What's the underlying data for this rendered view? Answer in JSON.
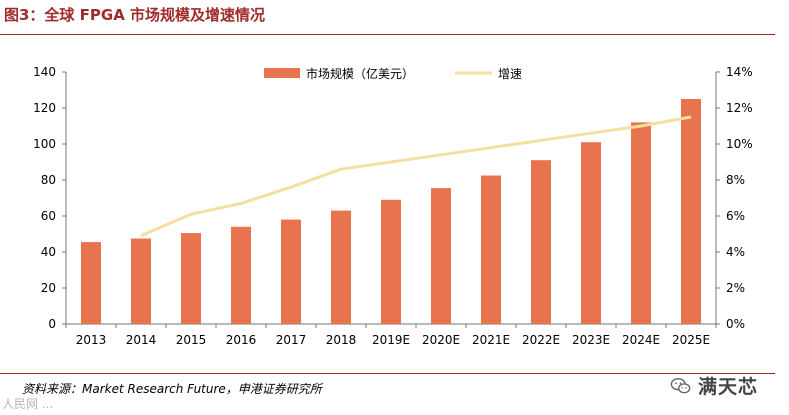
{
  "header": {
    "title": "图3：全球 FPGA 市场规模及增速情况"
  },
  "footer": {
    "source": "资料来源：Market Research Future，申港证券研究所",
    "watermark_left": "人民网 ...",
    "watermark_right": "满天芯"
  },
  "chart_data": {
    "type": "bar",
    "categories": [
      "2013",
      "2014",
      "2015",
      "2016",
      "2017",
      "2018",
      "2019E",
      "2020E",
      "2021E",
      "2022E",
      "2023E",
      "2024E",
      "2025E"
    ],
    "series": [
      {
        "name": "市场规模（亿美元）",
        "type": "bar",
        "axis": "left",
        "color": "#e8734f",
        "values": [
          45.5,
          47.5,
          50.5,
          54,
          58,
          63,
          69,
          75.5,
          82.5,
          91,
          101,
          112,
          125
        ]
      },
      {
        "name": "增速",
        "type": "line",
        "axis": "right",
        "color": "#f5dea0",
        "values": [
          null,
          4.9,
          6.1,
          6.7,
          7.6,
          8.6,
          9.0,
          9.4,
          9.8,
          10.2,
          10.6,
          11.0,
          11.5
        ]
      }
    ],
    "ylim_left": [
      0,
      140
    ],
    "yticks_left": [
      "0",
      "20",
      "40",
      "60",
      "80",
      "100",
      "120",
      "140"
    ],
    "yticks_left_values": [
      0,
      20,
      40,
      60,
      80,
      100,
      120,
      140
    ],
    "ylim_right": [
      0,
      14
    ],
    "yticks_right": [
      "0%",
      "2%",
      "4%",
      "6%",
      "8%",
      "10%",
      "12%",
      "14%"
    ],
    "yticks_right_values": [
      0,
      2,
      4,
      6,
      8,
      10,
      12,
      14
    ],
    "legend_position": "top-center",
    "grid": false
  }
}
